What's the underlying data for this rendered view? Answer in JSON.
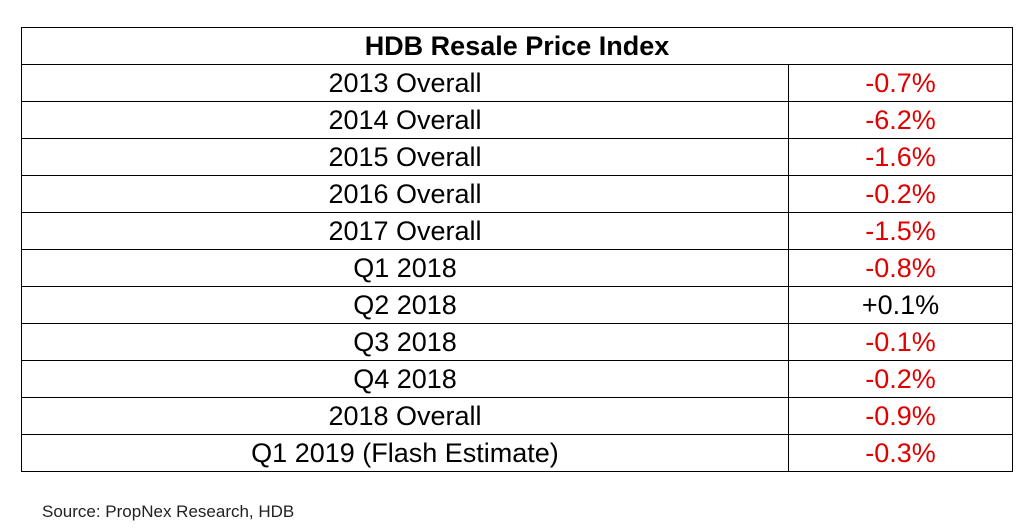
{
  "chart_data": {
    "type": "table",
    "title": "HDB Resale Price Index",
    "rows": [
      {
        "label": "2013 Overall",
        "value": "-0.7%"
      },
      {
        "label": "2014 Overall",
        "value": "-6.2%"
      },
      {
        "label": "2015 Overall",
        "value": "-1.6%"
      },
      {
        "label": "2016 Overall",
        "value": "-0.2%"
      },
      {
        "label": "2017 Overall",
        "value": "-1.5%"
      },
      {
        "label": "Q1 2018",
        "value": "-0.8%"
      },
      {
        "label": "Q2 2018",
        "value": "+0.1%"
      },
      {
        "label": "Q3 2018",
        "value": "-0.1%"
      },
      {
        "label": "Q4 2018",
        "value": "-0.2%"
      },
      {
        "label": "2018 Overall",
        "value": "-0.9%"
      },
      {
        "label": "Q1 2019 (Flash Estimate)",
        "value": "-0.3%"
      }
    ],
    "colors": {
      "negative": "#e00000",
      "positive": "#000000"
    }
  },
  "source": "Source: PropNex Research, HDB"
}
